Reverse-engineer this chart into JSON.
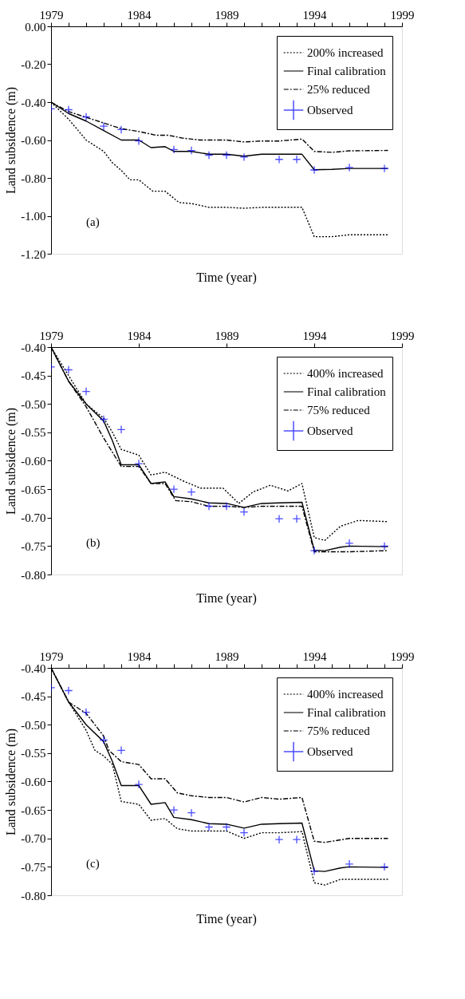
{
  "chart_data": [
    {
      "type": "line",
      "xlabel": "Time (year)",
      "ylabel": "Land subsidence (m)",
      "annotations": [
        "(a)"
      ],
      "xlim": [
        1979,
        1999
      ],
      "ylim": [
        -1.2,
        0
      ],
      "xticks": [
        1979,
        {
          "value": 1980,
          "label": null
        },
        {
          "value": 1981,
          "label": null
        },
        {
          "value": 1982,
          "label": null
        },
        {
          "value": 1983,
          "label": null
        },
        1984,
        {
          "value": 1985,
          "label": null
        },
        {
          "value": 1986,
          "label": null
        },
        {
          "value": 1987,
          "label": null
        },
        {
          "value": 1988,
          "label": null
        },
        1989,
        {
          "value": 1990,
          "label": null
        },
        {
          "value": 1991,
          "label": null
        },
        {
          "value": 1992,
          "label": null
        },
        {
          "value": 1993,
          "label": null
        },
        1994,
        {
          "value": 1995,
          "label": null
        },
        {
          "value": 1996,
          "label": null
        },
        {
          "value": 1997,
          "label": null
        },
        {
          "value": 1998,
          "label": null
        },
        1999
      ],
      "yticks": [
        {
          "value": -1.2,
          "label": "-1.20"
        },
        {
          "value": -1.0,
          "label": "-1.00"
        },
        {
          "value": -0.8,
          "label": "-0.80"
        },
        {
          "value": -0.6,
          "label": "-0.60"
        },
        {
          "value": -0.4,
          "label": "-0.40"
        },
        {
          "value": -0.2,
          "label": "-0.20"
        },
        {
          "value": 0,
          "label": "0.00"
        }
      ],
      "grid": false,
      "legend": "top right",
      "series": [
        {
          "name": "200% increased",
          "type": "line",
          "line_style": "dotted",
          "color": "#000000",
          "x": [
            1979,
            1980,
            1981,
            1982,
            1982.5,
            1983,
            1983.5,
            1984,
            1984.8,
            1985.5,
            1986.3,
            1987,
            1988,
            1989,
            1990,
            1991,
            1992,
            1993.3,
            1994,
            1995,
            1996,
            1998.2
          ],
          "values": [
            -0.4,
            -0.49,
            -0.6,
            -0.66,
            -0.72,
            -0.76,
            -0.81,
            -0.81,
            -0.87,
            -0.87,
            -0.93,
            -0.935,
            -0.955,
            -0.955,
            -0.96,
            -0.955,
            -0.955,
            -0.955,
            -1.11,
            -1.11,
            -1.1,
            -1.1
          ]
        },
        {
          "name": "Final calibration",
          "type": "line",
          "line_style": "solid",
          "color": "#000000",
          "x": [
            1979,
            1980,
            1981,
            1982,
            1983,
            1984,
            1984.7,
            1985.5,
            1986,
            1987,
            1988,
            1989,
            1990,
            1991,
            1993.3,
            1994,
            1995,
            1996,
            1998.2
          ],
          "values": [
            -0.4,
            -0.46,
            -0.5,
            -0.55,
            -0.6,
            -0.6,
            -0.64,
            -0.635,
            -0.66,
            -0.66,
            -0.675,
            -0.675,
            -0.685,
            -0.675,
            -0.675,
            -0.757,
            -0.755,
            -0.75,
            -0.75
          ]
        },
        {
          "name": "25% reduced",
          "type": "line",
          "line_style": "dashed",
          "color": "#000000",
          "x": [
            1979,
            1980,
            1981,
            1982,
            1983,
            1984,
            1985,
            1985.7,
            1986.5,
            1987.5,
            1989,
            1990,
            1991,
            1992,
            1993.3,
            1994,
            1995,
            1996,
            1998.2
          ],
          "values": [
            -0.4,
            -0.45,
            -0.48,
            -0.51,
            -0.54,
            -0.555,
            -0.575,
            -0.575,
            -0.59,
            -0.6,
            -0.6,
            -0.61,
            -0.605,
            -0.605,
            -0.595,
            -0.66,
            -0.665,
            -0.657,
            -0.655
          ]
        },
        {
          "name": "Observed",
          "type": "scatter",
          "marker": "cross",
          "color": "#0000ff",
          "x": [
            1979,
            1980,
            1981,
            1982,
            1983,
            1984,
            1986,
            1987,
            1988,
            1989,
            1990,
            1992,
            1993,
            1994,
            1996,
            1998
          ],
          "values": [
            -0.435,
            -0.44,
            -0.478,
            -0.527,
            -0.545,
            -0.605,
            -0.65,
            -0.655,
            -0.68,
            -0.68,
            -0.69,
            -0.702,
            -0.702,
            -0.758,
            -0.745,
            -0.75
          ]
        }
      ]
    },
    {
      "type": "line",
      "xlabel": "Time (year)",
      "ylabel": "Land subsidence (m)",
      "annotations": [
        "(b)"
      ],
      "xlim": [
        1979,
        1999
      ],
      "ylim": [
        -0.8,
        -0.4
      ],
      "xticks": [
        1979,
        1984,
        1989,
        1994,
        1999
      ],
      "yticks": [
        {
          "value": -0.8,
          "label": "-0.80"
        },
        {
          "value": -0.75,
          "label": "-0.75"
        },
        {
          "value": -0.7,
          "label": "-0.70"
        },
        {
          "value": -0.65,
          "label": "-0.65"
        },
        {
          "value": -0.6,
          "label": "-0.60"
        },
        {
          "value": -0.55,
          "label": "-0.55"
        },
        {
          "value": -0.5,
          "label": "-0.50"
        },
        {
          "value": -0.45,
          "label": "-0.45"
        },
        {
          "value": -0.4,
          "label": "-0.40"
        }
      ],
      "grid": false,
      "legend": "top right",
      "series": [
        {
          "name": "400% increased",
          "type": "line",
          "line_style": "dotted",
          "color": "#000000",
          "x": [
            1979,
            1980,
            1981,
            1982,
            1982.5,
            1983,
            1984,
            1984.7,
            1985.5,
            1986.5,
            1987.5,
            1988.8,
            1989.7,
            1990.5,
            1991.5,
            1992.5,
            1993.3,
            1994,
            1994.6,
            1995.5,
            1996.5,
            1998.2
          ],
          "values": [
            -0.4,
            -0.45,
            -0.5,
            -0.525,
            -0.55,
            -0.58,
            -0.59,
            -0.625,
            -0.62,
            -0.635,
            -0.648,
            -0.648,
            -0.675,
            -0.655,
            -0.643,
            -0.653,
            -0.64,
            -0.735,
            -0.74,
            -0.715,
            -0.705,
            -0.707
          ]
        },
        {
          "name": "Final calibration",
          "type": "line",
          "line_style": "solid",
          "color": "#000000",
          "x": [
            1979,
            1980,
            1981,
            1982,
            1982.5,
            1983,
            1984,
            1984.7,
            1985.5,
            1986,
            1987,
            1988,
            1989,
            1990,
            1991,
            1992,
            1993.3,
            1994,
            1994.6,
            1995.5,
            1996,
            1998.2
          ],
          "values": [
            -0.4,
            -0.46,
            -0.5,
            -0.53,
            -0.565,
            -0.607,
            -0.607,
            -0.64,
            -0.637,
            -0.663,
            -0.667,
            -0.674,
            -0.675,
            -0.682,
            -0.675,
            -0.674,
            -0.673,
            -0.757,
            -0.758,
            -0.752,
            -0.75,
            -0.751
          ]
        },
        {
          "name": "75% reduced",
          "type": "line",
          "line_style": "dashed",
          "color": "#000000",
          "x": [
            1979,
            1980,
            1981,
            1982,
            1983,
            1984,
            1984.7,
            1985.5,
            1986.1,
            1987,
            1988,
            1989,
            1990,
            1991,
            1993.3,
            1994,
            1996,
            1998.2
          ],
          "values": [
            -0.4,
            -0.46,
            -0.505,
            -0.56,
            -0.61,
            -0.61,
            -0.64,
            -0.64,
            -0.67,
            -0.672,
            -0.68,
            -0.68,
            -0.682,
            -0.68,
            -0.68,
            -0.76,
            -0.76,
            -0.758
          ]
        },
        {
          "name": "Observed",
          "type": "scatter",
          "marker": "cross",
          "color": "#0000ff",
          "x": [
            1979,
            1980,
            1981,
            1982,
            1983,
            1984,
            1986,
            1987,
            1988,
            1989,
            1990,
            1992,
            1993,
            1994,
            1996,
            1998
          ],
          "values": [
            -0.435,
            -0.44,
            -0.478,
            -0.527,
            -0.545,
            -0.605,
            -0.65,
            -0.655,
            -0.68,
            -0.68,
            -0.69,
            -0.702,
            -0.702,
            -0.758,
            -0.745,
            -0.75
          ]
        }
      ]
    },
    {
      "type": "line",
      "xlabel": "Time (year)",
      "ylabel": "Land subsidence (m)",
      "annotations": [
        "(c)"
      ],
      "xlim": [
        1979,
        1999
      ],
      "ylim": [
        -0.8,
        -0.4
      ],
      "xticks": [
        1979,
        {
          "value": 1980,
          "label": null
        },
        {
          "value": 1981,
          "label": null
        },
        {
          "value": 1982,
          "label": null
        },
        {
          "value": 1983,
          "label": null
        },
        1984,
        {
          "value": 1985,
          "label": null
        },
        {
          "value": 1986,
          "label": null
        },
        {
          "value": 1987,
          "label": null
        },
        {
          "value": 1988,
          "label": null
        },
        1989,
        {
          "value": 1990,
          "label": null
        },
        {
          "value": 1991,
          "label": null
        },
        {
          "value": 1992,
          "label": null
        },
        {
          "value": 1993,
          "label": null
        },
        1994,
        {
          "value": 1995,
          "label": null
        },
        {
          "value": 1996,
          "label": null
        },
        {
          "value": 1997,
          "label": null
        },
        {
          "value": 1998,
          "label": null
        },
        1999
      ],
      "yticks": [
        {
          "value": -0.8,
          "label": "-0.80"
        },
        {
          "value": -0.75,
          "label": "-0.75"
        },
        {
          "value": -0.7,
          "label": "-0.70"
        },
        {
          "value": -0.65,
          "label": "-0.65"
        },
        {
          "value": -0.6,
          "label": "-0.60"
        },
        {
          "value": -0.55,
          "label": "-0.55"
        },
        {
          "value": -0.5,
          "label": "-0.50"
        },
        {
          "value": -0.45,
          "label": "-0.45"
        },
        {
          "value": -0.4,
          "label": "-0.40"
        }
      ],
      "grid": false,
      "legend": "top right",
      "series": [
        {
          "name": "400% increased",
          "type": "line",
          "line_style": "dotted",
          "color": "#000000",
          "x": [
            1979,
            1980,
            1981,
            1981.5,
            1982,
            1982.5,
            1983,
            1984,
            1984.7,
            1985.5,
            1986.2,
            1987,
            1988,
            1989,
            1990,
            1991,
            1992,
            1993.3,
            1994,
            1994.6,
            1995.5,
            1996,
            1998.2
          ],
          "values": [
            -0.4,
            -0.46,
            -0.51,
            -0.545,
            -0.555,
            -0.57,
            -0.635,
            -0.64,
            -0.668,
            -0.665,
            -0.683,
            -0.687,
            -0.687,
            -0.687,
            -0.7,
            -0.69,
            -0.69,
            -0.688,
            -0.778,
            -0.782,
            -0.772,
            -0.772,
            -0.772
          ]
        },
        {
          "name": "Final calibration",
          "type": "line",
          "line_style": "solid",
          "color": "#000000",
          "x": [
            1979,
            1980,
            1981,
            1982,
            1982.5,
            1983,
            1984,
            1984.7,
            1985.5,
            1986,
            1987,
            1988,
            1989,
            1990,
            1991,
            1992,
            1993.3,
            1994,
            1994.6,
            1995.5,
            1996,
            1998.2
          ],
          "values": [
            -0.4,
            -0.46,
            -0.5,
            -0.53,
            -0.565,
            -0.607,
            -0.607,
            -0.64,
            -0.637,
            -0.663,
            -0.667,
            -0.674,
            -0.675,
            -0.682,
            -0.675,
            -0.674,
            -0.673,
            -0.757,
            -0.758,
            -0.752,
            -0.75,
            -0.751
          ]
        },
        {
          "name": "75% reduced",
          "type": "line",
          "line_style": "dashed",
          "color": "#000000",
          "x": [
            1979,
            1980,
            1981,
            1982,
            1982.3,
            1983,
            1984,
            1984.7,
            1985.5,
            1986.2,
            1987,
            1988,
            1989,
            1990,
            1991,
            1992,
            1993.3,
            1994,
            1994.6,
            1996,
            1998.2
          ],
          "values": [
            -0.4,
            -0.46,
            -0.48,
            -0.52,
            -0.545,
            -0.565,
            -0.57,
            -0.595,
            -0.595,
            -0.62,
            -0.625,
            -0.628,
            -0.628,
            -0.636,
            -0.628,
            -0.631,
            -0.628,
            -0.705,
            -0.707,
            -0.7,
            -0.7
          ]
        },
        {
          "name": "Observed",
          "type": "scatter",
          "marker": "cross",
          "color": "#0000ff",
          "x": [
            1979,
            1980,
            1981,
            1982,
            1983,
            1984,
            1986,
            1987,
            1988,
            1989,
            1990,
            1992,
            1993,
            1994,
            1996,
            1998
          ],
          "values": [
            -0.435,
            -0.44,
            -0.478,
            -0.527,
            -0.545,
            -0.605,
            -0.65,
            -0.655,
            -0.68,
            -0.68,
            -0.69,
            -0.702,
            -0.702,
            -0.758,
            -0.745,
            -0.75
          ]
        }
      ]
    }
  ]
}
